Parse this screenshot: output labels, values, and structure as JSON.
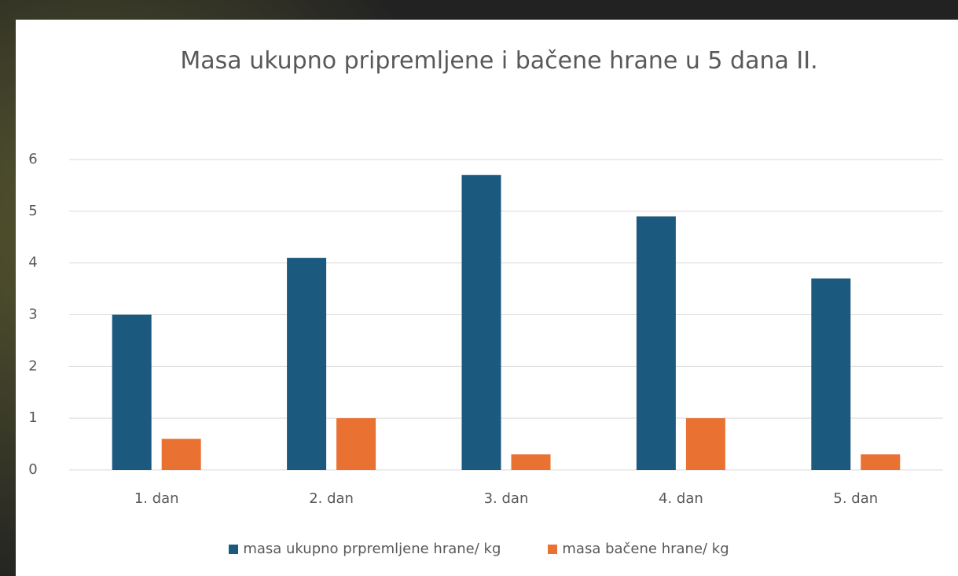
{
  "chart_data": {
    "type": "bar",
    "title": "Masa ukupno pripremljene i bačene hrane u 5 dana II.",
    "categories": [
      "1. dan",
      "2. dan",
      "3. dan",
      "4. dan",
      "5. dan"
    ],
    "series": [
      {
        "name": "masa ukupno prpremljene hrane/ kg",
        "color": "#1b5a7e",
        "values": [
          3.0,
          4.1,
          5.7,
          4.9,
          3.7
        ]
      },
      {
        "name": "masa bačene hrane/ kg",
        "color": "#e97132",
        "values": [
          0.6,
          1.0,
          0.3,
          1.0,
          0.3
        ]
      }
    ],
    "ylim": [
      0,
      6
    ],
    "yticks": [
      0,
      1,
      2,
      3,
      4,
      5,
      6
    ],
    "grid": true
  }
}
